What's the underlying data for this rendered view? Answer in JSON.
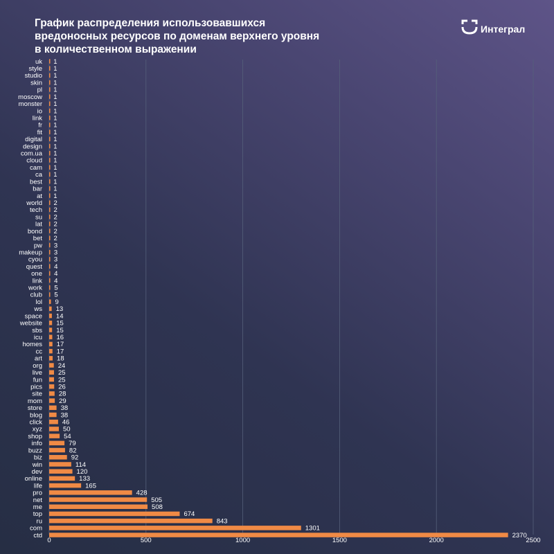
{
  "title_lines": [
    "График распределения использовавшихся",
    "вредоносных ресурсов по доменам верхнего уровня",
    "в количественном выражении"
  ],
  "logo": {
    "text": "Интеграл",
    "icon": "integral-logo-icon"
  },
  "colors": {
    "bar": "#f08a45",
    "grid": "#55607a",
    "text": "#ffffff"
  },
  "chart_data": {
    "type": "bar",
    "orientation": "horizontal",
    "title": "График распределения использовавшихся вредоносных ресурсов по доменам верхнего уровня в количественном выражении",
    "xlim": [
      0,
      2500
    ],
    "xticks": [
      0,
      500,
      1000,
      1500,
      2000,
      2500
    ],
    "grid": true,
    "categories": [
      "uk",
      "style",
      "studio",
      "skin",
      "pl",
      "moscow",
      "monster",
      "io",
      "link",
      "fr",
      "fit",
      "digital",
      "design",
      "com.ua",
      "cloud",
      "cam",
      "ca",
      "best",
      "bar",
      "at",
      "world",
      "tech",
      "su",
      "lat",
      "bond",
      "bet",
      "pw",
      "makeup",
      "cyou",
      "quest",
      "one",
      "link",
      "work",
      "club",
      "lol",
      "ws",
      "space",
      "website",
      "sbs",
      "icu",
      "homes",
      "cc",
      "art",
      "org",
      "live",
      "fun",
      "pics",
      "site",
      "mom",
      "store",
      "blog",
      "click",
      "xyz",
      "shop",
      "info",
      "buzz",
      "biz",
      "win",
      "dev",
      "online",
      "life",
      "pro",
      "net",
      "me",
      "top",
      "ru",
      "com",
      "ctd"
    ],
    "values": [
      1,
      1,
      1,
      1,
      1,
      1,
      1,
      1,
      1,
      1,
      1,
      1,
      1,
      1,
      1,
      1,
      1,
      1,
      1,
      1,
      2,
      2,
      2,
      2,
      2,
      2,
      3,
      3,
      3,
      4,
      4,
      4,
      5,
      5,
      9,
      13,
      14,
      15,
      15,
      16,
      17,
      17,
      18,
      24,
      25,
      25,
      26,
      28,
      29,
      38,
      38,
      46,
      50,
      54,
      79,
      82,
      92,
      114,
      120,
      133,
      165,
      428,
      505,
      508,
      674,
      843,
      1301,
      2370
    ]
  }
}
